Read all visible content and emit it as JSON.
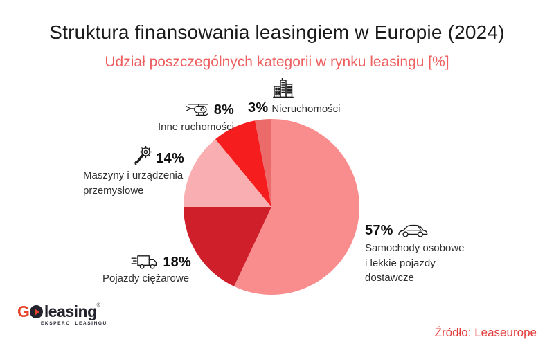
{
  "header": {
    "title": "Struktura finansowania leasingiem w Europie (2024)",
    "subtitle": "Udział poszczególnych kategorii w rynku leasingu [%]"
  },
  "chart_data": {
    "type": "pie",
    "title": "Struktura finansowania leasingiem w Europie (2024)",
    "subtitle": "Udział poszczególnych kategorii w rynku leasingu [%]",
    "unit": "%",
    "categories": [
      "Samochody osobowe i lekkie pojazdy dostawcze",
      "Pojazdy ciężarowe",
      "Maszyny i urządzenia przemysłowe",
      "Inne ruchomości",
      "Nieruchomości"
    ],
    "values": [
      57,
      18,
      14,
      8,
      3
    ],
    "colors": [
      "#F98D8D",
      "#CF1F2B",
      "#F9AFB2",
      "#F51D1D",
      "#EB6A6A"
    ],
    "slice_names": [
      "cars",
      "trucks",
      "machines",
      "movables",
      "real-estate"
    ],
    "start_angle_deg": 0,
    "direction": "clockwise",
    "legend_position": "callout-labels"
  },
  "labels": {
    "cars": {
      "pct": "57%",
      "lines": [
        "Samochody osobowe",
        "i lekkie pojazdy",
        "dostawcze"
      ]
    },
    "trucks": {
      "pct": "18%",
      "lines": [
        "Pojazdy ciężarowe"
      ]
    },
    "machines": {
      "pct": "14%",
      "lines": [
        "Maszyny i urządzenia",
        "przemysłowe"
      ]
    },
    "movables": {
      "pct": "8%",
      "lines": [
        "Inne ruchomości"
      ]
    },
    "real_estate": {
      "pct": "3%",
      "lines": [
        "Nieruchomości"
      ]
    }
  },
  "logo": {
    "g": "G",
    "leasing": "leasing",
    "registered": "®",
    "tagline": "EKSPERCI LEASINGU"
  },
  "footer": {
    "source": "Źródło: Leaseurope"
  },
  "colors": {
    "title": "#1A1A1A",
    "subtitle_accent": "#EE5F5F",
    "source_red": "#E23B3B"
  }
}
